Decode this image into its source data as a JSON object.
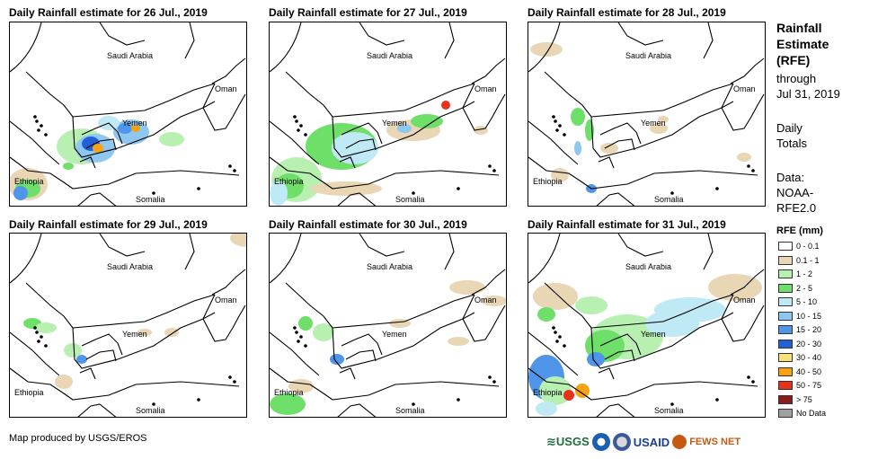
{
  "panels": [
    {
      "title": "Daily Rainfall estimate for 26 Jul., 2019"
    },
    {
      "title": "Daily Rainfall estimate for 27 Jul., 2019"
    },
    {
      "title": "Daily Rainfall estimate for 28 Jul., 2019"
    },
    {
      "title": "Daily Rainfall estimate for 29 Jul., 2019"
    },
    {
      "title": "Daily Rainfall estimate for 30 Jul., 2019"
    },
    {
      "title": "Daily Rainfall estimate for 31 Jul., 2019"
    }
  ],
  "country_labels": {
    "saudi": "Saudi Arabia",
    "oman": "Oman",
    "yemen": "Yemen",
    "ethiopia": "Ethiopia",
    "somalia": "Somalia"
  },
  "legend": {
    "title_line1": "Rainfall",
    "title_line2": "Estimate",
    "title_line3": "(RFE)",
    "through": "through",
    "date": "Jul 31, 2019",
    "daily": "Daily",
    "totals": "Totals",
    "data_label": "Data:",
    "noaa": "NOAA-",
    "rfe": "RFE2.0",
    "heading": "RFE (mm)",
    "classes": [
      {
        "label": "0 - 0.1",
        "color": "#ffffff"
      },
      {
        "label": "0.1 - 1",
        "color": "#e8d6b5"
      },
      {
        "label": "1 - 2",
        "color": "#b7f0b1"
      },
      {
        "label": "2 - 5",
        "color": "#6ee06a"
      },
      {
        "label": "5 - 10",
        "color": "#bfe9f5"
      },
      {
        "label": "10 - 15",
        "color": "#8ec7f0"
      },
      {
        "label": "15 - 20",
        "color": "#4f95ea"
      },
      {
        "label": "20 - 30",
        "color": "#2360d8"
      },
      {
        "label": "30 - 40",
        "color": "#f6e27a"
      },
      {
        "label": "40 - 50",
        "color": "#f5a312"
      },
      {
        "label": "50 - 75",
        "color": "#e8311a"
      },
      {
        "label": "> 75",
        "color": "#8b1a1a"
      },
      {
        "label": "No Data",
        "color": "#a0a0a0"
      }
    ]
  },
  "credit": "Map produced by USGS/EROS",
  "logos": {
    "usgs": "USGS",
    "usaid": "USAID",
    "fews": "FEWS NET"
  }
}
